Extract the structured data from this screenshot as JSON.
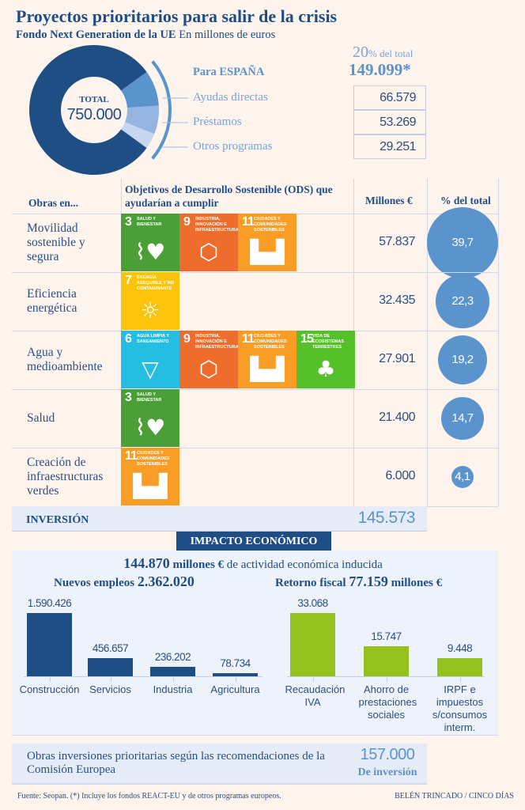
{
  "header": {
    "title": "Proyectos prioritarios para salir de la crisis",
    "subtitle_bold": "Fondo Next Generation de la UE",
    "subtitle": "En millones de euros"
  },
  "donut": {
    "total_label": "TOTAL",
    "total_value": "750.000",
    "total": 750000,
    "spain_label": "Para ESPAÑA",
    "spain_pct": "20",
    "spain_pct_suffix": "% del total",
    "spain_value": "149.099*",
    "segments": [
      {
        "label": "Ayudas directas",
        "value": 66579,
        "display": "66.579",
        "color": "#5b93cd"
      },
      {
        "label": "Préstamos",
        "value": 53269,
        "display": "53.269",
        "color": "#95b5e0"
      },
      {
        "label": "Otros programas",
        "value": 29251,
        "display": "29.251",
        "color": "#c6d7ef"
      }
    ],
    "rest_color": "#1f4e85"
  },
  "table": {
    "headers": {
      "obras": "Obras en...",
      "ods": "Objetivos de Desarrollo Sostenible (ODS) que ayudarían a cumplir",
      "millones": "Millones €",
      "pct": "% del total"
    },
    "ods_defs": {
      "3": {
        "label": "Salud y bienestar",
        "color": "#4c9f38",
        "icon": "heartbeat-icon",
        "glyph": "⌇♥"
      },
      "6": {
        "label": "Agua limpia y saneamiento",
        "color": "#26bde2",
        "icon": "water-glass-icon",
        "glyph": "▽"
      },
      "7": {
        "label": "Energía asequible y no contaminante",
        "color": "#fcc30b",
        "icon": "sun-power-icon",
        "glyph": "☼"
      },
      "9": {
        "label": "Industria, innovación e infraestructura",
        "color": "#ee6c2c",
        "icon": "cubes-icon",
        "glyph": "⬡"
      },
      "11": {
        "label": "Ciudades y comunidades sostenibles",
        "color": "#f99d26",
        "icon": "buildings-icon",
        "glyph": "▙▟"
      },
      "15": {
        "label": "Vida de ecosistemas terrestres",
        "color": "#56c02b",
        "icon": "tree-icon",
        "glyph": "♣"
      }
    },
    "rows": [
      {
        "label": "Movilidad sostenible y segura",
        "ods": [
          "3",
          "9",
          "11"
        ],
        "millones": "57.837",
        "pct": 39.7,
        "pct_display": "39,7"
      },
      {
        "label": "Eficiencia energética",
        "ods": [
          "7"
        ],
        "millones": "32.435",
        "pct": 22.3,
        "pct_display": "22,3"
      },
      {
        "label": "Agua y medioambiente",
        "ods": [
          "6",
          "9",
          "11",
          "15"
        ],
        "millones": "27.901",
        "pct": 19.2,
        "pct_display": "19,2"
      },
      {
        "label": "Salud",
        "ods": [
          "3"
        ],
        "millones": "21.400",
        "pct": 14.7,
        "pct_display": "14,7"
      },
      {
        "label": "Creación de infraestructuras verdes",
        "ods": [
          "11"
        ],
        "millones": "6.000",
        "pct": 4.1,
        "pct_display": "4,1"
      }
    ],
    "inversion_label": "INVERSIÓN",
    "inversion_value": "145.573"
  },
  "impacto": {
    "title": "IMPACTO ECONÓMICO",
    "headline_value": "144.870",
    "headline_unit": "millones €",
    "headline_text": "de actividad económica inducida"
  },
  "chart_data": [
    {
      "type": "bar",
      "title": "Nuevos empleos",
      "total": "2.362.020",
      "color": "#1f4e85",
      "categories": [
        "Construcción",
        "Servicios",
        "Industria",
        "Agricultura"
      ],
      "values": [
        1590426,
        456657,
        236202,
        78734
      ],
      "labels": [
        "1.590.426",
        "456.657",
        "236.202",
        "78.734"
      ]
    },
    {
      "type": "bar",
      "title": "Retorno fiscal",
      "total": "77.159",
      "unit": "millones €",
      "color": "#95c11f",
      "categories": [
        "Recaudación IVA",
        "Ahorro de prestaciones sociales",
        "IRPF e impuestos s/consumos interm."
      ],
      "values": [
        33068,
        15747,
        9448
      ],
      "labels": [
        "33.068",
        "15.747",
        "9.448"
      ]
    }
  ],
  "bottom": {
    "text": "Obras inversiones prioritarias según las recomendaciones de la Comisión Europea",
    "value": "157.000",
    "value_label": "De inversión"
  },
  "footer": {
    "source": "Fuente: Seopan. (*) Incluye los fondos REACT-EU y de otros programas europeos.",
    "credit": "BELÉN TRINCADO / CINCO DÍAS"
  }
}
